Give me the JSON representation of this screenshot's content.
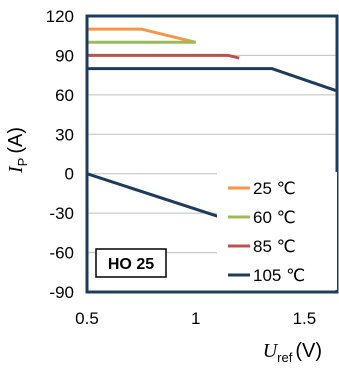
{
  "chart_data": {
    "type": "line",
    "title": "",
    "xlabel": {
      "symbol": "U",
      "subscript": "ref",
      "unit": "(V)"
    },
    "ylabel": {
      "symbol": "I",
      "subscript": "P",
      "unit": "(A)"
    },
    "xlim": [
      0.5,
      1.65
    ],
    "ylim": [
      -90,
      120
    ],
    "x_ticks": [
      0.5,
      1,
      1.5
    ],
    "x_tick_labels": [
      "0.5",
      "1",
      "1.5"
    ],
    "y_ticks": [
      120,
      90,
      60,
      30,
      0,
      -30,
      -60,
      -90
    ],
    "y_tick_labels": [
      "120",
      "90",
      "60",
      "30",
      "0",
      "-30",
      "-60",
      "-90"
    ],
    "grid": "horizontal",
    "legend_position": "right",
    "annotation": "HO 25",
    "series": [
      {
        "name": "25 ℃",
        "color": "#F79646",
        "x": [
          0.5,
          0.75,
          0.85,
          1.0
        ],
        "y": [
          110,
          110,
          106,
          100
        ]
      },
      {
        "name": "60 ℃",
        "color": "#9BBB59",
        "x": [
          0.5,
          0.93,
          1.0
        ],
        "y": [
          100,
          100,
          100
        ]
      },
      {
        "name": "85 ℃",
        "color": "#C0504D",
        "x": [
          0.5,
          1.15,
          1.2
        ],
        "y": [
          90,
          90,
          88
        ]
      },
      {
        "name": "105 ℃",
        "color": "#1F3B5C",
        "x": [
          0.5,
          1.35,
          1.65
        ],
        "y": [
          80,
          80,
          63
        ]
      },
      {
        "name": "",
        "color": "#1F3B5C",
        "x": [
          0.5,
          1.65
        ],
        "y": [
          0,
          -62
        ]
      }
    ]
  }
}
